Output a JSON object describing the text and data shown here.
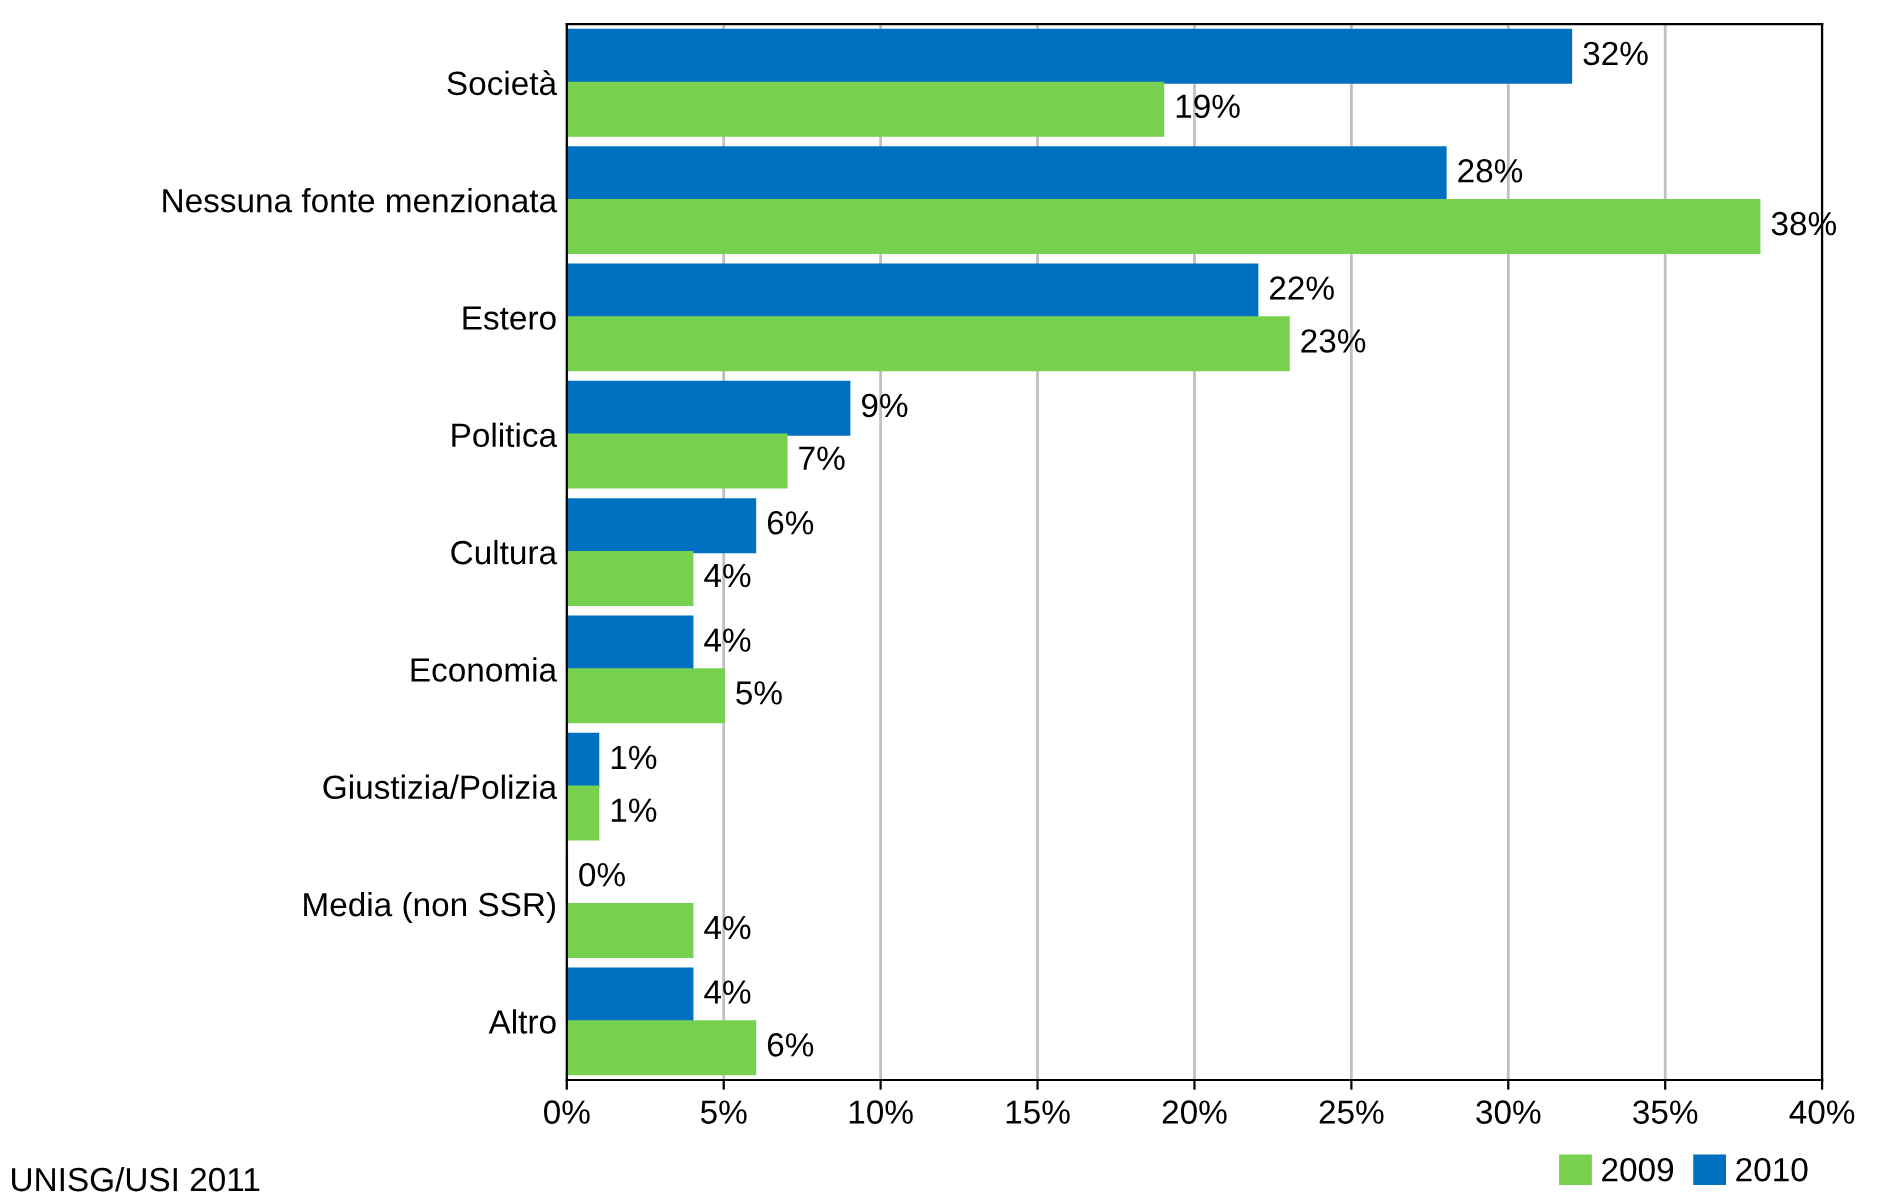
{
  "chart_data": {
    "type": "bar",
    "orientation": "horizontal",
    "categories": [
      "Società",
      "Nessuna fonte menzionata",
      "Estero",
      "Politica",
      "Cultura",
      "Economia",
      "Giustizia/Polizia",
      "Media (non SSR)",
      "Altro"
    ],
    "series": [
      {
        "name": "2010",
        "color": "#0070c0",
        "values": [
          32,
          28,
          22,
          9,
          6,
          4,
          1,
          0,
          4
        ],
        "value_labels": [
          "32%",
          "28%",
          "22%",
          "9%",
          "6%",
          "4%",
          "1%",
          "0%",
          "4%"
        ]
      },
      {
        "name": "2009",
        "color": "#77d14f",
        "values": [
          19,
          38,
          23,
          7,
          4,
          5,
          1,
          4,
          6
        ],
        "value_labels": [
          "19%",
          "38%",
          "23%",
          "7%",
          "4%",
          "5%",
          "1%",
          "4%",
          "6%"
        ]
      }
    ],
    "xlim": [
      0,
      40
    ],
    "xticks": [
      {
        "value": 0,
        "label": "0%"
      },
      {
        "value": 5,
        "label": "5%"
      },
      {
        "value": 10,
        "label": "10%"
      },
      {
        "value": 15,
        "label": "15%"
      },
      {
        "value": 20,
        "label": "20%"
      },
      {
        "value": 25,
        "label": "25%"
      },
      {
        "value": 30,
        "label": "30%"
      },
      {
        "value": 35,
        "label": "35%"
      },
      {
        "value": 40,
        "label": "40%"
      }
    ],
    "grid": "x",
    "legend": "bottom right",
    "annotations": [
      "UNISG/USI 2011"
    ]
  }
}
